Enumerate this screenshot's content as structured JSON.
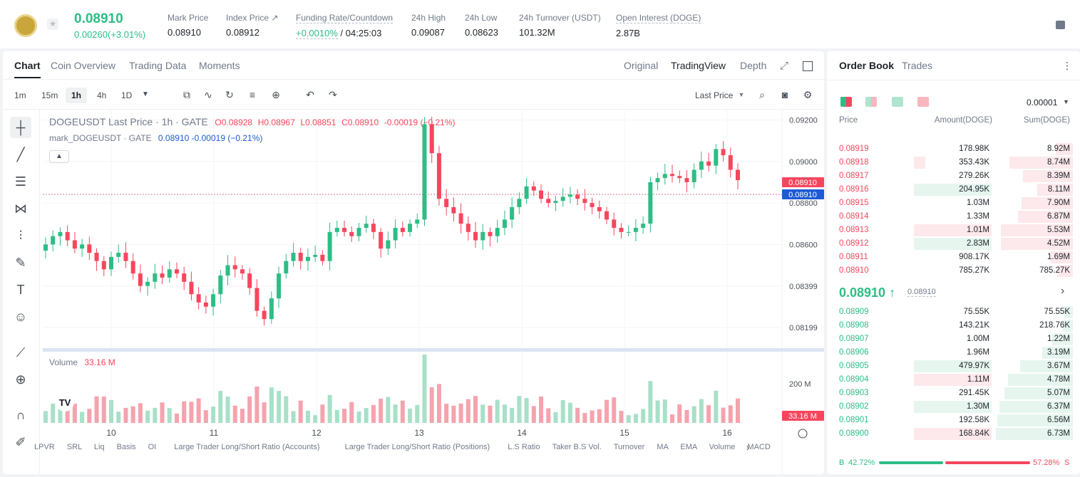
{
  "ticker": {
    "last_price": "0.08910",
    "change": "0.00260(+3.01%)",
    "stats": [
      {
        "label": "Mark Price",
        "value": "0.08910"
      },
      {
        "label": "Index Price ↗",
        "value": "0.08912"
      },
      {
        "label": "Funding Rate/Countdown",
        "value_rate": "+0.0010%",
        "value_countdown": "/ 04:25:03"
      },
      {
        "label": "24h High",
        "value": "0.09087"
      },
      {
        "label": "24h Low",
        "value": "0.08623"
      },
      {
        "label": "24h Turnover (USDT)",
        "value": "101.32M"
      },
      {
        "label": "Open Interest (DOGE)",
        "value": "2.87B"
      }
    ]
  },
  "chart_tabs": [
    "Chart",
    "Coin Overview",
    "Trading Data",
    "Moments"
  ],
  "view_tabs": [
    "Original",
    "TradingView",
    "Depth"
  ],
  "timeframes": [
    "1m",
    "15m",
    "1h",
    "4h",
    "1D"
  ],
  "price_type": "Last Price",
  "legend": {
    "symbol": "DOGEUSDT Last Price · 1h · GATE",
    "o": "O0.08928",
    "h": "H0.08967",
    "l": "L0.08851",
    "c": "C0.08910",
    "chg": "-0.00019 (−0.21%)",
    "mark": "mark_DOGEUSDT · GATE",
    "mark_val": "0.08910 -0.00019 (−0.21%)",
    "volume_label": "Volume",
    "volume_val": "33.16 M"
  },
  "price_axis": [
    "0.09200",
    "0.09000",
    "0.08800",
    "0.08600",
    "0.08399",
    "0.08199"
  ],
  "price_tags": {
    "last": "0.08910",
    "mark": "0.08910"
  },
  "volume_axis": "200 M",
  "volume_tag": "33.16 M",
  "time_axis": [
    "10",
    "11",
    "12",
    "13",
    "14",
    "15",
    "16"
  ],
  "indicators": [
    "LPVR",
    "SRL",
    "Liq",
    "Basis",
    "OI",
    "Large Trader Long/Short Ratio (Accounts)",
    "Large Trader Long/Short Ratio (Positions)",
    "L.S Ratio",
    "Taker B.S Vol.",
    "Turnover",
    "MA",
    "EMA",
    "Volume",
    "MACD"
  ],
  "chart_data": {
    "type": "candlestick",
    "title": "DOGEUSDT Last Price · 1h · GATE",
    "ylim": [
      0.081,
      0.0925
    ],
    "x_ticks": [
      "10",
      "11",
      "12",
      "13",
      "14",
      "15",
      "16"
    ],
    "close_series": [
      0.086,
      0.0864,
      0.0866,
      0.0862,
      0.0858,
      0.086,
      0.0856,
      0.0852,
      0.0848,
      0.0854,
      0.0856,
      0.0852,
      0.0846,
      0.084,
      0.0842,
      0.0846,
      0.0844,
      0.0848,
      0.0846,
      0.0842,
      0.0836,
      0.0832,
      0.083,
      0.0836,
      0.0845,
      0.085,
      0.0848,
      0.0846,
      0.0839,
      0.0828,
      0.0824,
      0.0834,
      0.0846,
      0.0852,
      0.0856,
      0.0852,
      0.0854,
      0.0855,
      0.0852,
      0.0866,
      0.0868,
      0.0866,
      0.0864,
      0.0868,
      0.087,
      0.0866,
      0.0858,
      0.0862,
      0.0868,
      0.0866,
      0.087,
      0.0872,
      0.0918,
      0.0904,
      0.0882,
      0.0878,
      0.0875,
      0.087,
      0.0866,
      0.0862,
      0.0866,
      0.0864,
      0.0868,
      0.0872,
      0.0878,
      0.0882,
      0.0888,
      0.0886,
      0.0882,
      0.088,
      0.0881,
      0.0883,
      0.0884,
      0.0882,
      0.088,
      0.0878,
      0.0876,
      0.0872,
      0.0868,
      0.0866,
      0.0866,
      0.0868,
      0.087,
      0.089,
      0.0892,
      0.0894,
      0.0893,
      0.0892,
      0.089,
      0.0896,
      0.09,
      0.0898,
      0.0906,
      0.0903,
      0.0896,
      0.0891
    ],
    "volume_peak": "≈200 M at 13",
    "current_volume": "33.16 M"
  },
  "orderbook": {
    "tabs": [
      "Order Book",
      "Trades"
    ],
    "precision": "0.00001",
    "headers": [
      "Price",
      "Amount(DOGE)",
      "Sum(DOGE)"
    ],
    "asks": [
      {
        "p": "0.08919",
        "a": "178.98K",
        "s": "8.92M"
      },
      {
        "p": "0.08918",
        "a": "353.43K",
        "s": "8.74M"
      },
      {
        "p": "0.08917",
        "a": "279.26K",
        "s": "8.39M"
      },
      {
        "p": "0.08916",
        "a": "204.95K",
        "s": "8.11M"
      },
      {
        "p": "0.08915",
        "a": "1.03M",
        "s": "7.90M"
      },
      {
        "p": "0.08914",
        "a": "1.33M",
        "s": "6.87M"
      },
      {
        "p": "0.08913",
        "a": "1.01M",
        "s": "5.53M"
      },
      {
        "p": "0.08912",
        "a": "2.83M",
        "s": "4.52M"
      },
      {
        "p": "0.08911",
        "a": "908.17K",
        "s": "1.69M"
      },
      {
        "p": "0.08910",
        "a": "785.27K",
        "s": "785.27K"
      }
    ],
    "mid_price": "0.08910 ↑",
    "mid_mark": "0.08910",
    "bids": [
      {
        "p": "0.08909",
        "a": "75.55K",
        "s": "75.55K"
      },
      {
        "p": "0.08908",
        "a": "143.21K",
        "s": "218.76K"
      },
      {
        "p": "0.08907",
        "a": "1.00M",
        "s": "1.22M"
      },
      {
        "p": "0.08906",
        "a": "1.96M",
        "s": "3.19M"
      },
      {
        "p": "0.08905",
        "a": "479.97K",
        "s": "3.67M"
      },
      {
        "p": "0.08904",
        "a": "1.11M",
        "s": "4.78M"
      },
      {
        "p": "0.08903",
        "a": "291.45K",
        "s": "5.07M"
      },
      {
        "p": "0.08902",
        "a": "1.30M",
        "s": "6.37M"
      },
      {
        "p": "0.08901",
        "a": "192.58K",
        "s": "6.56M"
      },
      {
        "p": "0.08900",
        "a": "168.84K",
        "s": "6.73M"
      }
    ],
    "buy_label": "B",
    "buy_pct": "42.72%",
    "sell_pct": "57.28%",
    "sell_label": "S"
  }
}
